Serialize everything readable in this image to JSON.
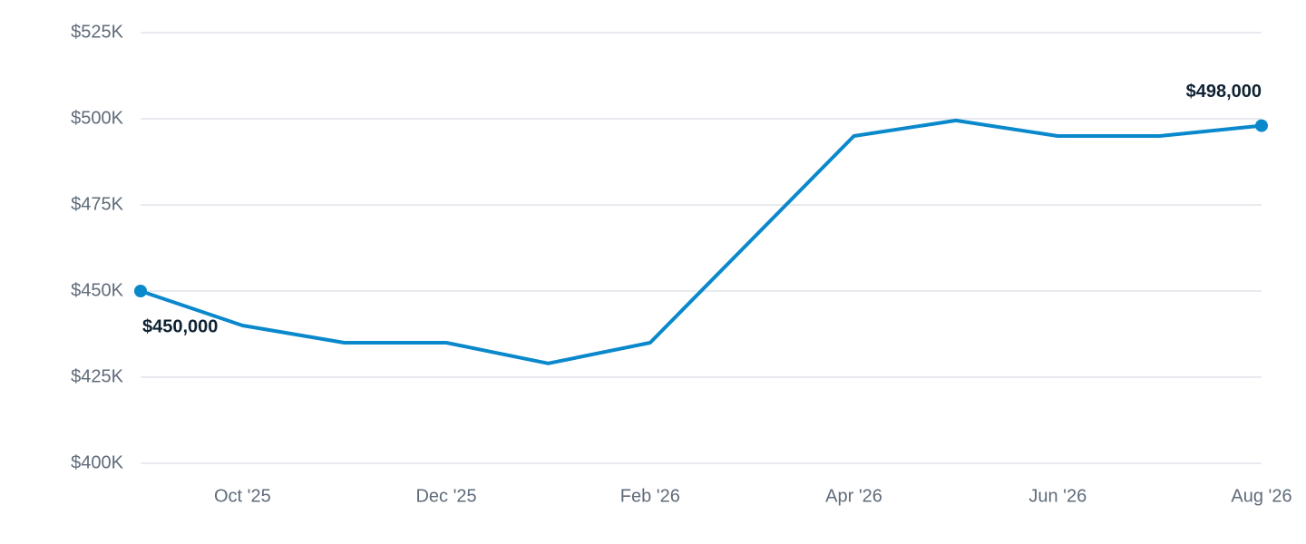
{
  "chart_data": {
    "type": "line",
    "categories": [
      null,
      "Oct '25",
      null,
      "Dec '25",
      null,
      "Feb '26",
      null,
      "Apr '26",
      null,
      "Jun '26",
      null,
      "Aug '26"
    ],
    "series": [
      {
        "color": "#0a88cc",
        "values": [
          450000,
          440000,
          435000,
          435000,
          429000,
          435000,
          465000,
          495000,
          499500,
          495000,
          495000,
          498000
        ],
        "value_labels": [
          "$450,000",
          null,
          null,
          null,
          null,
          null,
          null,
          null,
          null,
          null,
          null,
          "$498,000"
        ]
      }
    ],
    "ylim": [
      400000,
      525000
    ],
    "yticks": [
      {
        "value": 400000,
        "label": "$400K"
      },
      {
        "value": 425000,
        "label": "$425K"
      },
      {
        "value": 450000,
        "label": "$450K"
      },
      {
        "value": 475000,
        "label": "$475K"
      },
      {
        "value": 500000,
        "label": "$500K"
      },
      {
        "value": 525000,
        "label": "$525K"
      }
    ],
    "grid": true
  }
}
